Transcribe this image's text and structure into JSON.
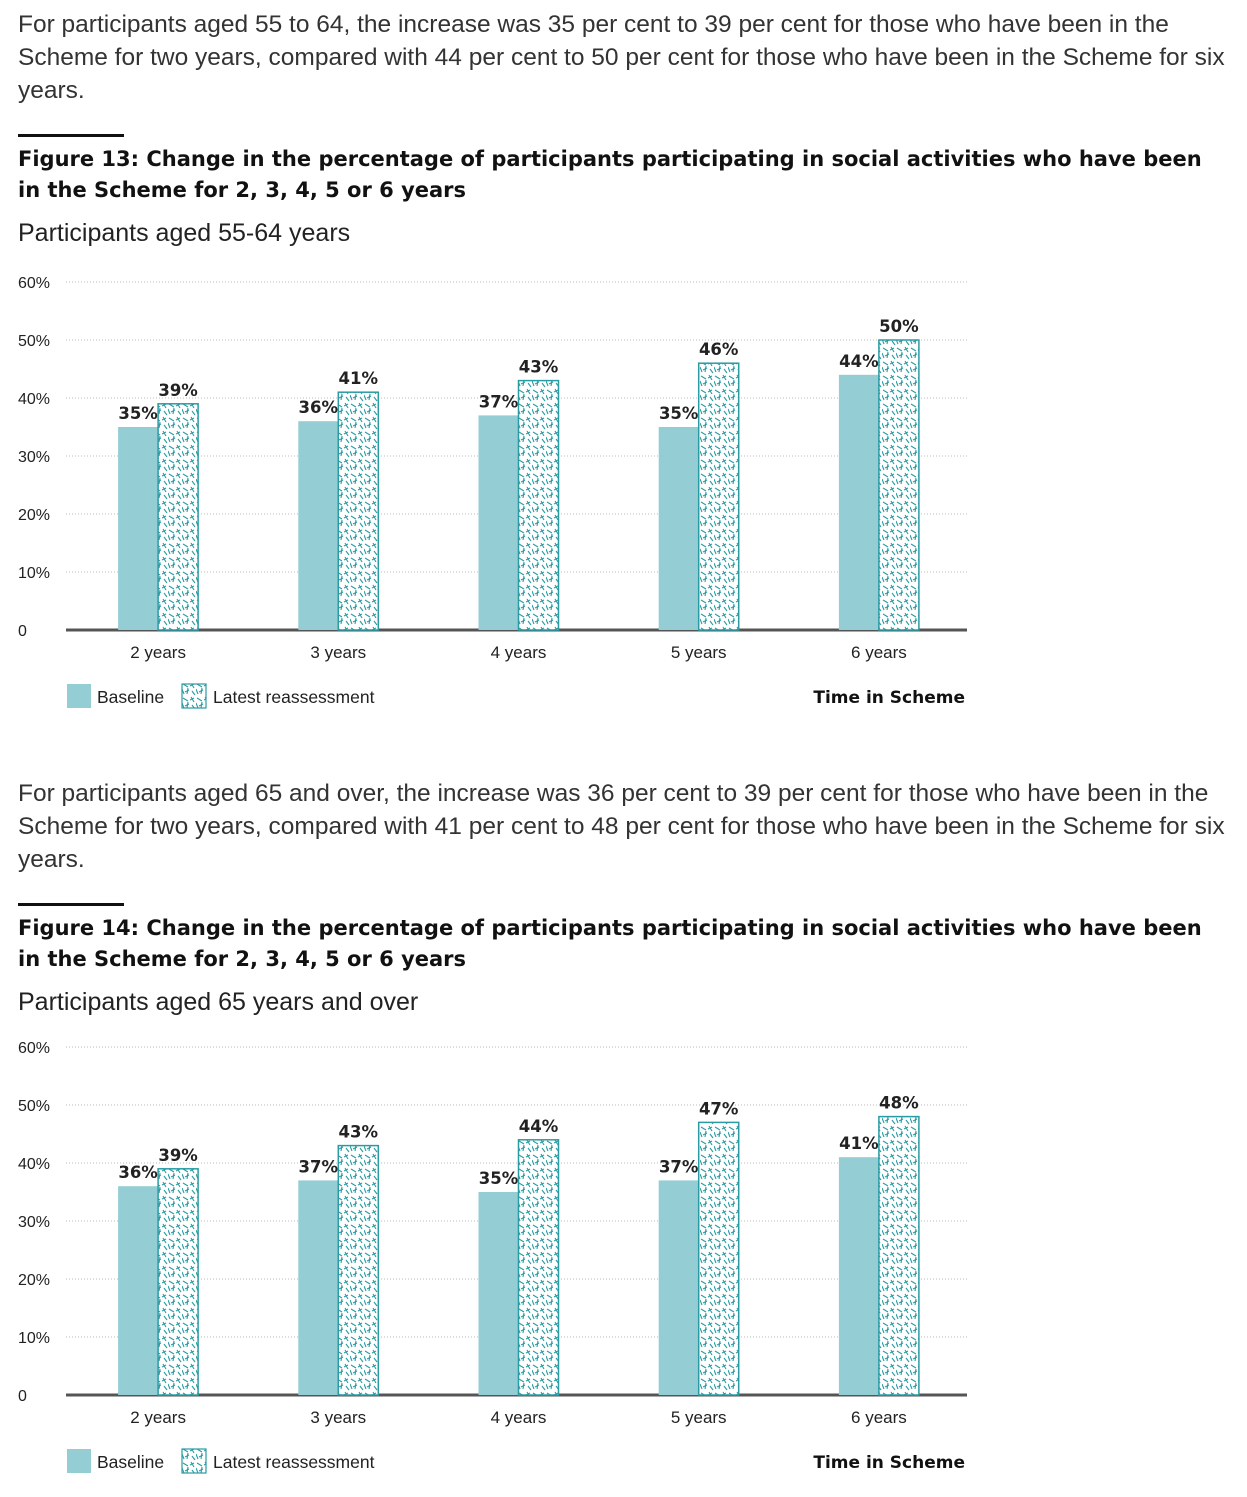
{
  "paragraphs": [
    "For participants aged 55 to 64, the increase was 35 per cent to 39 per cent for those who have been in the Scheme for two years, compared with 44 per cent to 50 per cent for those who have been in the Scheme for six years.",
    "For participants aged 65 and over, the increase was 36 per cent to 39 per cent for those who have been in the Scheme for two years, compared with 41 per cent to 48 per cent for those who have been in the Scheme for six years."
  ],
  "colors": {
    "baseline": "#94cdd4",
    "latest_outline": "#2a9ba3",
    "hatch": "#2a9ba3",
    "axis": "#555555",
    "grid": "#bbbbbb"
  },
  "chart_data": [
    {
      "type": "bar",
      "title": "Figure 13: Change in the percentage of participants participating in social activities who have been in the Scheme for 2, 3, 4, 5 or 6 years",
      "subtitle": "Participants aged 55-64 years",
      "xlabel": "Time in Scheme",
      "ylabel": "",
      "ylim": [
        0,
        60
      ],
      "yticks": [
        0,
        10,
        20,
        30,
        40,
        50,
        60
      ],
      "ytick_labels": [
        "0",
        "10%",
        "20%",
        "30%",
        "40%",
        "50%",
        "60%"
      ],
      "categories": [
        "2 years",
        "3 years",
        "4 years",
        "5 years",
        "6 years"
      ],
      "series": [
        {
          "name": "Baseline",
          "values": [
            35,
            36,
            37,
            35,
            44
          ],
          "labels": [
            "35%",
            "36%",
            "37%",
            "35%",
            "44%"
          ]
        },
        {
          "name": "Latest reassessment",
          "values": [
            39,
            41,
            43,
            46,
            50
          ],
          "labels": [
            "39%",
            "41%",
            "43%",
            "46%",
            "50%"
          ]
        }
      ],
      "grid": "horizontal dotted",
      "legend": "bottom-left"
    },
    {
      "type": "bar",
      "title": "Figure 14: Change in the percentage of participants participating in social activities who have been in the Scheme for 2, 3, 4, 5 or 6 years",
      "subtitle": "Participants aged 65 years and over",
      "xlabel": "Time in Scheme",
      "ylabel": "",
      "ylim": [
        0,
        60
      ],
      "yticks": [
        0,
        10,
        20,
        30,
        40,
        50,
        60
      ],
      "ytick_labels": [
        "0",
        "10%",
        "20%",
        "30%",
        "40%",
        "50%",
        "60%"
      ],
      "categories": [
        "2 years",
        "3 years",
        "4 years",
        "5 years",
        "6 years"
      ],
      "series": [
        {
          "name": "Baseline",
          "values": [
            36,
            37,
            35,
            37,
            41
          ],
          "labels": [
            "36%",
            "37%",
            "35%",
            "37%",
            "41%"
          ]
        },
        {
          "name": "Latest reassessment",
          "values": [
            39,
            43,
            44,
            47,
            48
          ],
          "labels": [
            "39%",
            "43%",
            "44%",
            "47%",
            "48%"
          ]
        }
      ],
      "grid": "horizontal dotted",
      "legend": "bottom-left"
    }
  ]
}
